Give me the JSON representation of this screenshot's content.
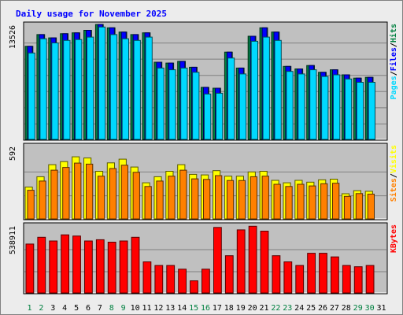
{
  "title": "Daily usage for November 2025",
  "colors": {
    "title": "#0000ff",
    "background": "#ececec",
    "plot_bg": "#c0c0c0",
    "gridline": "#808080",
    "pages": "#00d8ff",
    "files": "#0000ff",
    "hits": "#008040",
    "sites": "#ff8000",
    "visits": "#ffff00",
    "kbytes": "#ff0000",
    "separator": "#000000",
    "day_weekday": "#000000",
    "day_weekend": "#008040"
  },
  "chart_data": [
    {
      "type": "bar",
      "panel": "hits-files-pages",
      "ymax_label": "13526",
      "ylim": [
        0,
        13526
      ],
      "legend": [
        "Pages",
        "Files",
        "Hits"
      ],
      "grid": true,
      "categories": [
        "1",
        "2",
        "3",
        "4",
        "5",
        "6",
        "7",
        "8",
        "9",
        "10",
        "11",
        "12",
        "13",
        "14",
        "15",
        "16",
        "17",
        "18",
        "19",
        "20",
        "21",
        "22",
        "23",
        "24",
        "25",
        "26",
        "27",
        "28",
        "29",
        "30",
        "31"
      ],
      "series": [
        {
          "name": "Hits",
          "values": [
            11200,
            12600,
            12200,
            12700,
            12800,
            13100,
            13800,
            13400,
            12900,
            12600,
            12800,
            9300,
            9200,
            9400,
            8700,
            6300,
            6200,
            10500,
            8600,
            12400,
            13400,
            12900,
            8800,
            8500,
            8900,
            8100,
            8400,
            7800,
            7400,
            7500,
            null
          ]
        },
        {
          "name": "Files",
          "values": [
            11200,
            12600,
            12200,
            12700,
            12800,
            13100,
            13800,
            13400,
            12900,
            12600,
            12800,
            9300,
            9200,
            9400,
            8700,
            6300,
            6200,
            10500,
            8600,
            12400,
            13400,
            12900,
            8800,
            8500,
            8900,
            8100,
            8400,
            7800,
            7400,
            7500,
            null
          ]
        },
        {
          "name": "Pages",
          "values": [
            10400,
            12100,
            11600,
            11900,
            12000,
            12300,
            13500,
            12600,
            12100,
            11900,
            12300,
            8600,
            8400,
            8600,
            8100,
            5500,
            5600,
            9800,
            7900,
            11800,
            12300,
            11900,
            8200,
            7900,
            8400,
            7600,
            7800,
            7300,
            6900,
            6900,
            null
          ]
        }
      ]
    },
    {
      "type": "bar",
      "panel": "visits-sites",
      "ymax_label": "592",
      "ylim": [
        0,
        592
      ],
      "legend": [
        "Sites",
        "Visits"
      ],
      "grid": true,
      "categories": [
        "1",
        "2",
        "3",
        "4",
        "5",
        "6",
        "7",
        "8",
        "9",
        "10",
        "11",
        "12",
        "13",
        "14",
        "15",
        "16",
        "17",
        "18",
        "19",
        "20",
        "21",
        "22",
        "23",
        "24",
        "25",
        "26",
        "27",
        "28",
        "29",
        "30",
        "31"
      ],
      "series": [
        {
          "name": "Visits",
          "values": [
            270,
            355,
            455,
            480,
            520,
            510,
            400,
            470,
            500,
            435,
            305,
            355,
            400,
            455,
            375,
            370,
            405,
            360,
            360,
            395,
            400,
            325,
            305,
            325,
            310,
            330,
            335,
            215,
            240,
            235,
            null
          ]
        },
        {
          "name": "Sites",
          "values": [
            270,
            355,
            455,
            480,
            520,
            510,
            400,
            470,
            500,
            435,
            305,
            355,
            400,
            455,
            375,
            370,
            405,
            360,
            360,
            395,
            400,
            325,
            305,
            325,
            310,
            330,
            335,
            215,
            240,
            235,
            null
          ]
        }
      ]
    },
    {
      "type": "bar",
      "panel": "kbytes",
      "ymax_label": "538911",
      "ylim": [
        0,
        538911
      ],
      "legend": [
        "KBytes"
      ],
      "grid": true,
      "categories": [
        "1",
        "2",
        "3",
        "4",
        "5",
        "6",
        "7",
        "8",
        "9",
        "10",
        "11",
        "12",
        "13",
        "14",
        "15",
        "16",
        "17",
        "18",
        "19",
        "20",
        "21",
        "22",
        "23",
        "24",
        "25",
        "26",
        "27",
        "28",
        "29",
        "30",
        "31"
      ],
      "series": [
        {
          "name": "KBytes",
          "values": [
            405000,
            460000,
            430000,
            480000,
            470000,
            430000,
            440000,
            420000,
            430000,
            460000,
            260000,
            230000,
            230000,
            200000,
            105000,
            200000,
            540000,
            310000,
            520000,
            550000,
            510000,
            310000,
            260000,
            230000,
            330000,
            330000,
            300000,
            230000,
            220000,
            230000,
            null
          ]
        }
      ]
    }
  ],
  "day_labels": [
    "1",
    "2",
    "3",
    "4",
    "5",
    "6",
    "7",
    "8",
    "9",
    "10",
    "11",
    "12",
    "13",
    "14",
    "15",
    "16",
    "17",
    "18",
    "19",
    "20",
    "21",
    "22",
    "23",
    "24",
    "25",
    "26",
    "27",
    "28",
    "29",
    "30",
    "31"
  ],
  "weekend_days": [
    "1",
    "2",
    "8",
    "9",
    "15",
    "16",
    "22",
    "23",
    "29",
    "30"
  ]
}
